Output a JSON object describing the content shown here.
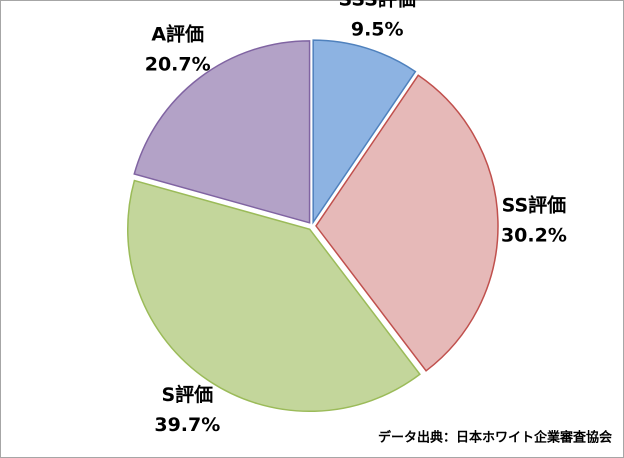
{
  "chart_data": {
    "type": "pie",
    "categories": [
      "SSS評価",
      "SS評価",
      "S評価",
      "A評価"
    ],
    "values": [
      9.5,
      30.2,
      39.7,
      20.7
    ],
    "value_labels": [
      "9.5%",
      "30.2%",
      "39.7%",
      "20.7%"
    ],
    "colors": [
      "#8db3e2",
      "#e6b9b8",
      "#c3d69b",
      "#b3a2c7"
    ],
    "source": "データ出典：日本ホワイト企業審査協会"
  }
}
